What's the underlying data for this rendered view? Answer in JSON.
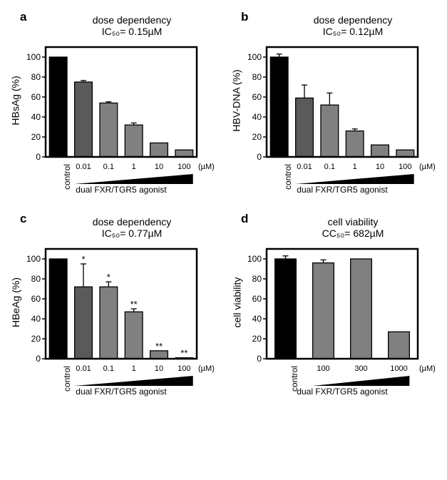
{
  "figure": {
    "background_color": "#ffffff",
    "panel_letter_fontsize": 17,
    "title_fontsize": 14,
    "ylabel_fontsize": 14,
    "xtick_fontsize": 11,
    "xlabel_fontsize": 12,
    "font_family": "Arial, Helvetica, sans-serif"
  },
  "panels": {
    "a": {
      "letter": "a",
      "title_line1": "dose dependency",
      "title_line2": "IC₅₀= 0.15µM",
      "ylabel": "HBsAg (%)",
      "xaxis_label": "dual FXR/TGR5 agonist",
      "unit": "(µM)",
      "type": "bar",
      "ylim": [
        0,
        110
      ],
      "ytick_step": 20,
      "ymax_tick": 100,
      "bar_width": 0.7,
      "frame_color": "#000000",
      "frame_width": 2.5,
      "categories": [
        "control",
        "0.01",
        "0.1",
        "1",
        "10",
        "100"
      ],
      "values": [
        100,
        75,
        54,
        32,
        14,
        7
      ],
      "errors": [
        0,
        1.5,
        1.2,
        2,
        0,
        0
      ],
      "bar_colors": [
        "#000000",
        "#5a5a5a",
        "#808080",
        "#808080",
        "#808080",
        "#808080"
      ],
      "bar_border": "#000000",
      "control_rotated": true,
      "sig": [
        "",
        "",
        "",
        "",
        "",
        ""
      ]
    },
    "b": {
      "letter": "b",
      "title_line1": "dose dependency",
      "title_line2": "IC₅₀= 0.12µM",
      "ylabel": "HBV-DNA (%)",
      "xaxis_label": "dual FXR/TGR5 agonist",
      "unit": "(µM)",
      "type": "bar",
      "ylim": [
        0,
        110
      ],
      "ytick_step": 20,
      "ymax_tick": 100,
      "bar_width": 0.7,
      "frame_color": "#000000",
      "frame_width": 2.5,
      "categories": [
        "control",
        "0.01",
        "0.1",
        "1",
        "10",
        "100"
      ],
      "values": [
        100,
        59,
        52,
        26,
        12,
        7
      ],
      "errors": [
        3,
        13,
        12,
        2,
        0,
        0
      ],
      "bar_colors": [
        "#000000",
        "#5a5a5a",
        "#808080",
        "#808080",
        "#808080",
        "#808080"
      ],
      "bar_border": "#000000",
      "control_rotated": true,
      "sig": [
        "",
        "",
        "",
        "",
        "",
        ""
      ]
    },
    "c": {
      "letter": "c",
      "title_line1": "dose dependency",
      "title_line2": "IC₅₀= 0.77µM",
      "ylabel": "HBeAg (%)",
      "xaxis_label": "dual FXR/TGR5 agonist",
      "unit": "(µM)",
      "type": "bar",
      "ylim": [
        0,
        110
      ],
      "ytick_step": 20,
      "ymax_tick": 100,
      "bar_width": 0.7,
      "frame_color": "#000000",
      "frame_width": 2.5,
      "categories": [
        "control",
        "0.01",
        "0.1",
        "1",
        "10",
        "100"
      ],
      "values": [
        100,
        72,
        72,
        47,
        8,
        1
      ],
      "errors": [
        0,
        23,
        5,
        3,
        0,
        0
      ],
      "bar_colors": [
        "#000000",
        "#5a5a5a",
        "#808080",
        "#808080",
        "#808080",
        "#808080"
      ],
      "bar_border": "#000000",
      "control_rotated": true,
      "sig": [
        "",
        "*",
        "*",
        "**",
        "**",
        "**"
      ]
    },
    "d": {
      "letter": "d",
      "title_line1": "cell viability",
      "title_line2": "CC₅₀= 682µM",
      "ylabel": "cell viability",
      "xaxis_label": "dual FXR/TGR5 agonist",
      "unit": "(µM)",
      "type": "bar",
      "ylim": [
        0,
        110
      ],
      "ytick_step": 20,
      "ymax_tick": 100,
      "bar_width": 0.56,
      "frame_color": "#000000",
      "frame_width": 2.5,
      "categories": [
        "control",
        "100",
        "300",
        "1000"
      ],
      "values": [
        100,
        96,
        100,
        27
      ],
      "errors": [
        3,
        3,
        0,
        0
      ],
      "bar_colors": [
        "#000000",
        "#808080",
        "#808080",
        "#808080"
      ],
      "bar_border": "#000000",
      "control_rotated": true,
      "sig": [
        "",
        "",
        "",
        ""
      ]
    }
  }
}
